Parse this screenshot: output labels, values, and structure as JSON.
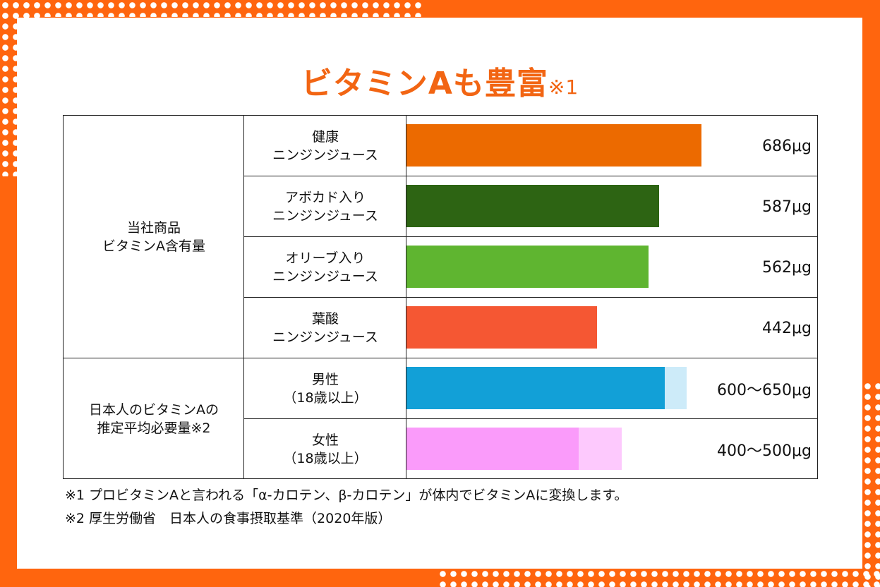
{
  "title": "ビタミンAも豊富",
  "title_note": "※1",
  "colors": {
    "accent": "#FF650E"
  },
  "chart_data": {
    "type": "bar",
    "title": "ビタミンAも豊富※1",
    "groups": [
      "当社商品 ビタミンA含有量",
      "日本人のビタミンAの推定平均必要量※2"
    ],
    "group_labels": [
      [
        "当社商品",
        "ビタミンA含有量"
      ],
      [
        "日本人のビタミンAの",
        "推定平均必要量※2"
      ]
    ],
    "unit": "μg",
    "rows": [
      {
        "label": [
          "健康",
          "ニンジンジュース"
        ],
        "group": 0,
        "value": 686,
        "text": "686μg",
        "color": "#EC6A00"
      },
      {
        "label": [
          "アボカド入り",
          "ニンジンジュース"
        ],
        "group": 0,
        "value": 587,
        "text": "587μg",
        "color": "#2D6413"
      },
      {
        "label": [
          "オリーブ入り",
          "ニンジンジュース"
        ],
        "group": 0,
        "value": 562,
        "text": "562μg",
        "color": "#5FB530"
      },
      {
        "label": [
          "葉酸",
          "ニンジンジュース"
        ],
        "group": 0,
        "value": 442,
        "text": "442μg",
        "color": "#F55733"
      },
      {
        "label": [
          "男性",
          "（18歳以上）"
        ],
        "group": 1,
        "value": 600,
        "range_max": 650,
        "text": "600～650μg",
        "color": "#12A0D7",
        "range_color": "#CDEBF9"
      },
      {
        "label": [
          "女性",
          "（18歳以上）"
        ],
        "group": 1,
        "value": 400,
        "range_max": 500,
        "text": "400～500μg",
        "color": "#FA9BFA",
        "range_color": "#FDC9FD"
      }
    ]
  },
  "notes": [
    "※1 プロビタミンAと言われる「α-カロテン、β-カロテン」が体内でビタミンAに変換します。",
    "※2 厚生労働省　日本人の食事摂取基準（2020年版）"
  ]
}
